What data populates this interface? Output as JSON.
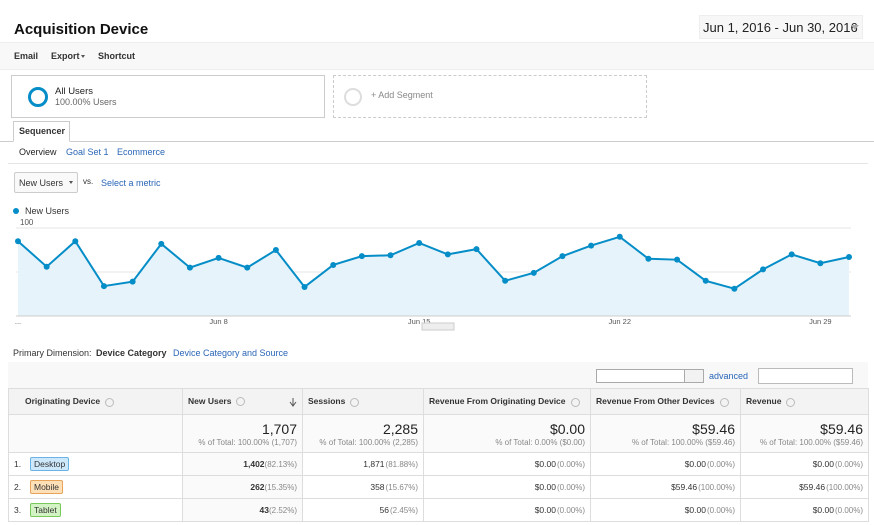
{
  "header": {
    "title": "Acquisition Device",
    "date_range": "Jun 1, 2016 - Jun 30, 2016"
  },
  "toolbar": [
    "Email",
    "Export",
    "Shortcut"
  ],
  "segments": [
    {
      "name": "All Users",
      "detail": "100.00% Users"
    }
  ],
  "add_segment": "+ Add Segment",
  "tab": "Sequencer",
  "subtabs": [
    "Overview",
    "Goal Set 1",
    "Ecommerce"
  ],
  "metric_selector": {
    "metric": "New Users",
    "vs": "vs.",
    "compare": "Select a metric"
  },
  "chart_data": {
    "type": "line",
    "categories": [
      "...",
      null,
      null,
      null,
      null,
      null,
      null,
      "Jun 8",
      null,
      null,
      null,
      null,
      null,
      null,
      "Jun 15",
      null,
      null,
      null,
      null,
      null,
      null,
      "Jun 22",
      null,
      null,
      null,
      null,
      null,
      null,
      "Jun 29",
      null
    ],
    "series": [
      {
        "name": "New Users",
        "color": "#058dc7",
        "values": [
          85,
          56,
          85,
          34,
          39,
          82,
          55,
          66,
          55,
          75,
          33,
          58,
          68,
          69,
          83,
          70,
          76,
          40,
          49,
          68,
          80,
          90,
          65,
          64,
          40,
          31,
          53,
          70,
          60,
          67
        ]
      }
    ],
    "ylim": [
      0,
      100
    ],
    "yticks": [
      50,
      100
    ],
    "grid": true
  },
  "dimension": {
    "label": "Primary Dimension:",
    "options": [
      "Device Category",
      "Device Category and Source"
    ]
  },
  "table": {
    "advanced": "advanced",
    "columns": [
      "Originating Device",
      "New Users",
      "Sessions",
      "Revenue From Originating Device",
      "Revenue From Other Devices",
      "Revenue"
    ],
    "totals": [
      {
        "value": "1,707",
        "share": "% of Total: 100.00% (1,707)"
      },
      {
        "value": "2,285",
        "share": "% of Total: 100.00% (2,285)"
      },
      {
        "value": "$0.00",
        "share": "% of Total: 0.00% ($0.00)"
      },
      {
        "value": "$59.46",
        "share": "% of Total: 100.00% ($59.46)"
      },
      {
        "value": "$59.46",
        "share": "% of Total: 100.00% ($59.46)"
      }
    ],
    "rows": [
      {
        "index": "1.",
        "device": "Desktop",
        "cells": [
          {
            "value": "1,402",
            "share": "(82.13%)"
          },
          {
            "value": "1,871",
            "share": "(81.88%)"
          },
          {
            "value": "$0.00",
            "share": "(0.00%)"
          },
          {
            "value": "$0.00",
            "share": "(0.00%)"
          },
          {
            "value": "$0.00",
            "share": "(0.00%)"
          }
        ]
      },
      {
        "index": "2.",
        "device": "Mobile",
        "cells": [
          {
            "value": "262",
            "share": "(15.35%)"
          },
          {
            "value": "358",
            "share": "(15.67%)"
          },
          {
            "value": "$0.00",
            "share": "(0.00%)"
          },
          {
            "value": "$59.46",
            "share": "(100.00%)"
          },
          {
            "value": "$59.46",
            "share": "(100.00%)"
          }
        ]
      },
      {
        "index": "3.",
        "device": "Tablet",
        "cells": [
          {
            "value": "43",
            "share": "(2.52%)"
          },
          {
            "value": "56",
            "share": "(2.45%)"
          },
          {
            "value": "$0.00",
            "share": "(0.00%)"
          },
          {
            "value": "$0.00",
            "share": "(0.00%)"
          },
          {
            "value": "$0.00",
            "share": "(0.00%)"
          }
        ]
      }
    ]
  }
}
